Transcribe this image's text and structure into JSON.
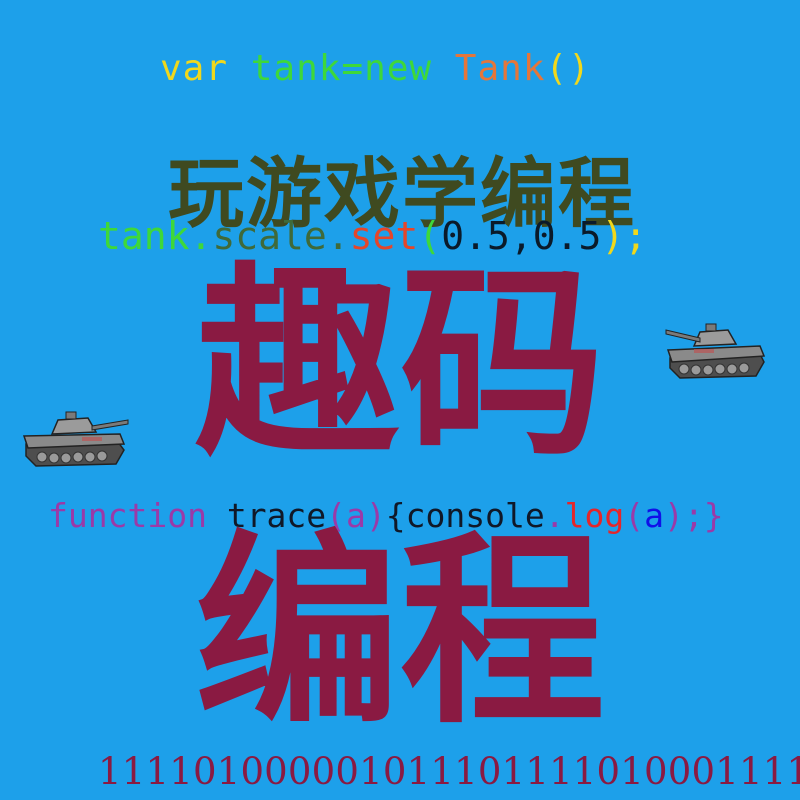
{
  "colors": {
    "background": "#1da0ea",
    "title": "#3f4a20",
    "big_text": "#8a1a42",
    "binary": "#8a1a42"
  },
  "code_line_1": {
    "kw": "var",
    "name": "tank=new",
    "cls": "Tank",
    "parens": "()"
  },
  "title": "玩游戏学编程",
  "code_line_2": {
    "obj": "tank.",
    "prop": "scale.",
    "method": "set",
    "open": "(",
    "args": "0.5,0.5",
    "close": ");"
  },
  "big_text_1": "趣码",
  "code_line_3": {
    "kw": "function",
    "name": " trace",
    "param": "(a)",
    "brace": "{console",
    "dot": ".",
    "method": "log",
    "paren_open": "(",
    "arg": "a",
    "tail": ");}"
  },
  "big_text_2": "编程",
  "binary": "1111010000010111011110100011111",
  "icons": {
    "tank_right": "tank-icon",
    "tank_left": "tank-icon"
  }
}
